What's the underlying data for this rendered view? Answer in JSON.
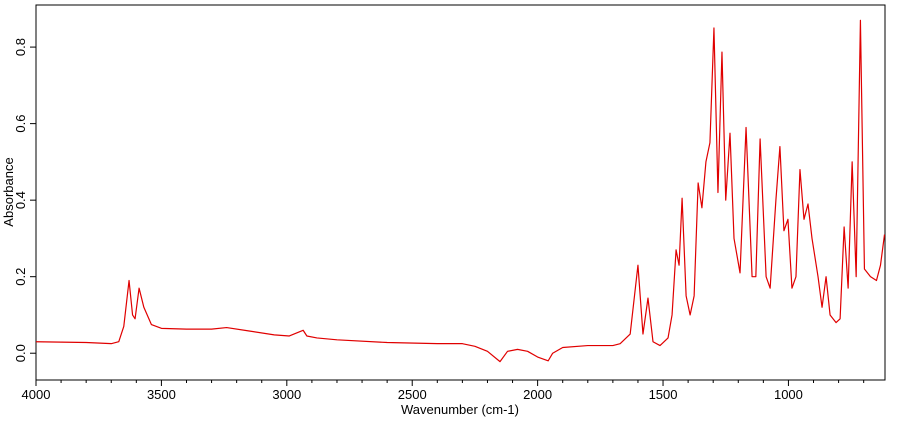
{
  "chart_data": {
    "type": "line",
    "xlabel": "Wavenumber (cm-1)",
    "ylabel": "Absorbance",
    "color": "#e00000",
    "xlim": [
      4000,
      615
    ],
    "ylim": [
      -0.07,
      0.91
    ],
    "xticks": [
      4000,
      3500,
      3000,
      2500,
      2000,
      1500,
      1000
    ],
    "yticks": [
      {
        "value": 0,
        "label": "0.0"
      },
      0.2,
      0.4,
      0.6,
      0.8
    ],
    "x_minor_ticks": [
      3900,
      3800,
      3700,
      3600,
      3400,
      3300,
      3200,
      3100,
      2900,
      2800,
      2700,
      2600,
      2400,
      2300,
      2200,
      2100,
      1900,
      1800,
      1700,
      1600,
      1400,
      1300,
      1200,
      1100,
      900,
      800,
      700
    ],
    "x": [
      4000,
      3800,
      3700,
      3670,
      3650,
      3629,
      3615,
      3605,
      3589,
      3570,
      3540,
      3500,
      3400,
      3300,
      3240,
      3150,
      3050,
      2990,
      2935,
      2920,
      2880,
      2800,
      2600,
      2400,
      2300,
      2250,
      2200,
      2150,
      2120,
      2080,
      2040,
      2000,
      1958,
      1940,
      1900,
      1800,
      1700,
      1671,
      1631,
      1600,
      1580,
      1560,
      1540,
      1512,
      1480,
      1464,
      1448,
      1436,
      1424,
      1408,
      1392,
      1376,
      1360,
      1345,
      1329,
      1313,
      1297,
      1281,
      1265,
      1250,
      1233,
      1217,
      1193,
      1169,
      1145,
      1130,
      1113,
      1089,
      1073,
      1050,
      1034,
      1018,
      1002,
      986,
      970,
      954,
      938,
      922,
      906,
      882,
      866,
      850,
      834,
      810,
      794,
      778,
      762,
      746,
      730,
      713,
      697,
      673,
      649,
      633,
      617
    ],
    "values": [
      0.03,
      0.028,
      0.025,
      0.03,
      0.07,
      0.19,
      0.1,
      0.09,
      0.17,
      0.12,
      0.075,
      0.065,
      0.063,
      0.063,
      0.067,
      0.058,
      0.048,
      0.045,
      0.06,
      0.045,
      0.04,
      0.035,
      0.028,
      0.025,
      0.025,
      0.018,
      0.005,
      -0.022,
      0.005,
      0.01,
      0.005,
      -0.01,
      -0.02,
      0.0,
      0.015,
      0.02,
      0.02,
      0.025,
      0.05,
      0.23,
      0.05,
      0.144,
      0.03,
      0.02,
      0.04,
      0.1,
      0.27,
      0.23,
      0.405,
      0.15,
      0.1,
      0.15,
      0.445,
      0.38,
      0.5,
      0.55,
      0.85,
      0.42,
      0.787,
      0.4,
      0.575,
      0.3,
      0.21,
      0.59,
      0.2,
      0.2,
      0.56,
      0.2,
      0.17,
      0.4,
      0.54,
      0.32,
      0.35,
      0.17,
      0.2,
      0.48,
      0.35,
      0.39,
      0.3,
      0.2,
      0.12,
      0.2,
      0.1,
      0.08,
      0.09,
      0.33,
      0.17,
      0.5,
      0.2,
      0.87,
      0.22,
      0.2,
      0.19,
      0.23,
      0.31
    ]
  }
}
